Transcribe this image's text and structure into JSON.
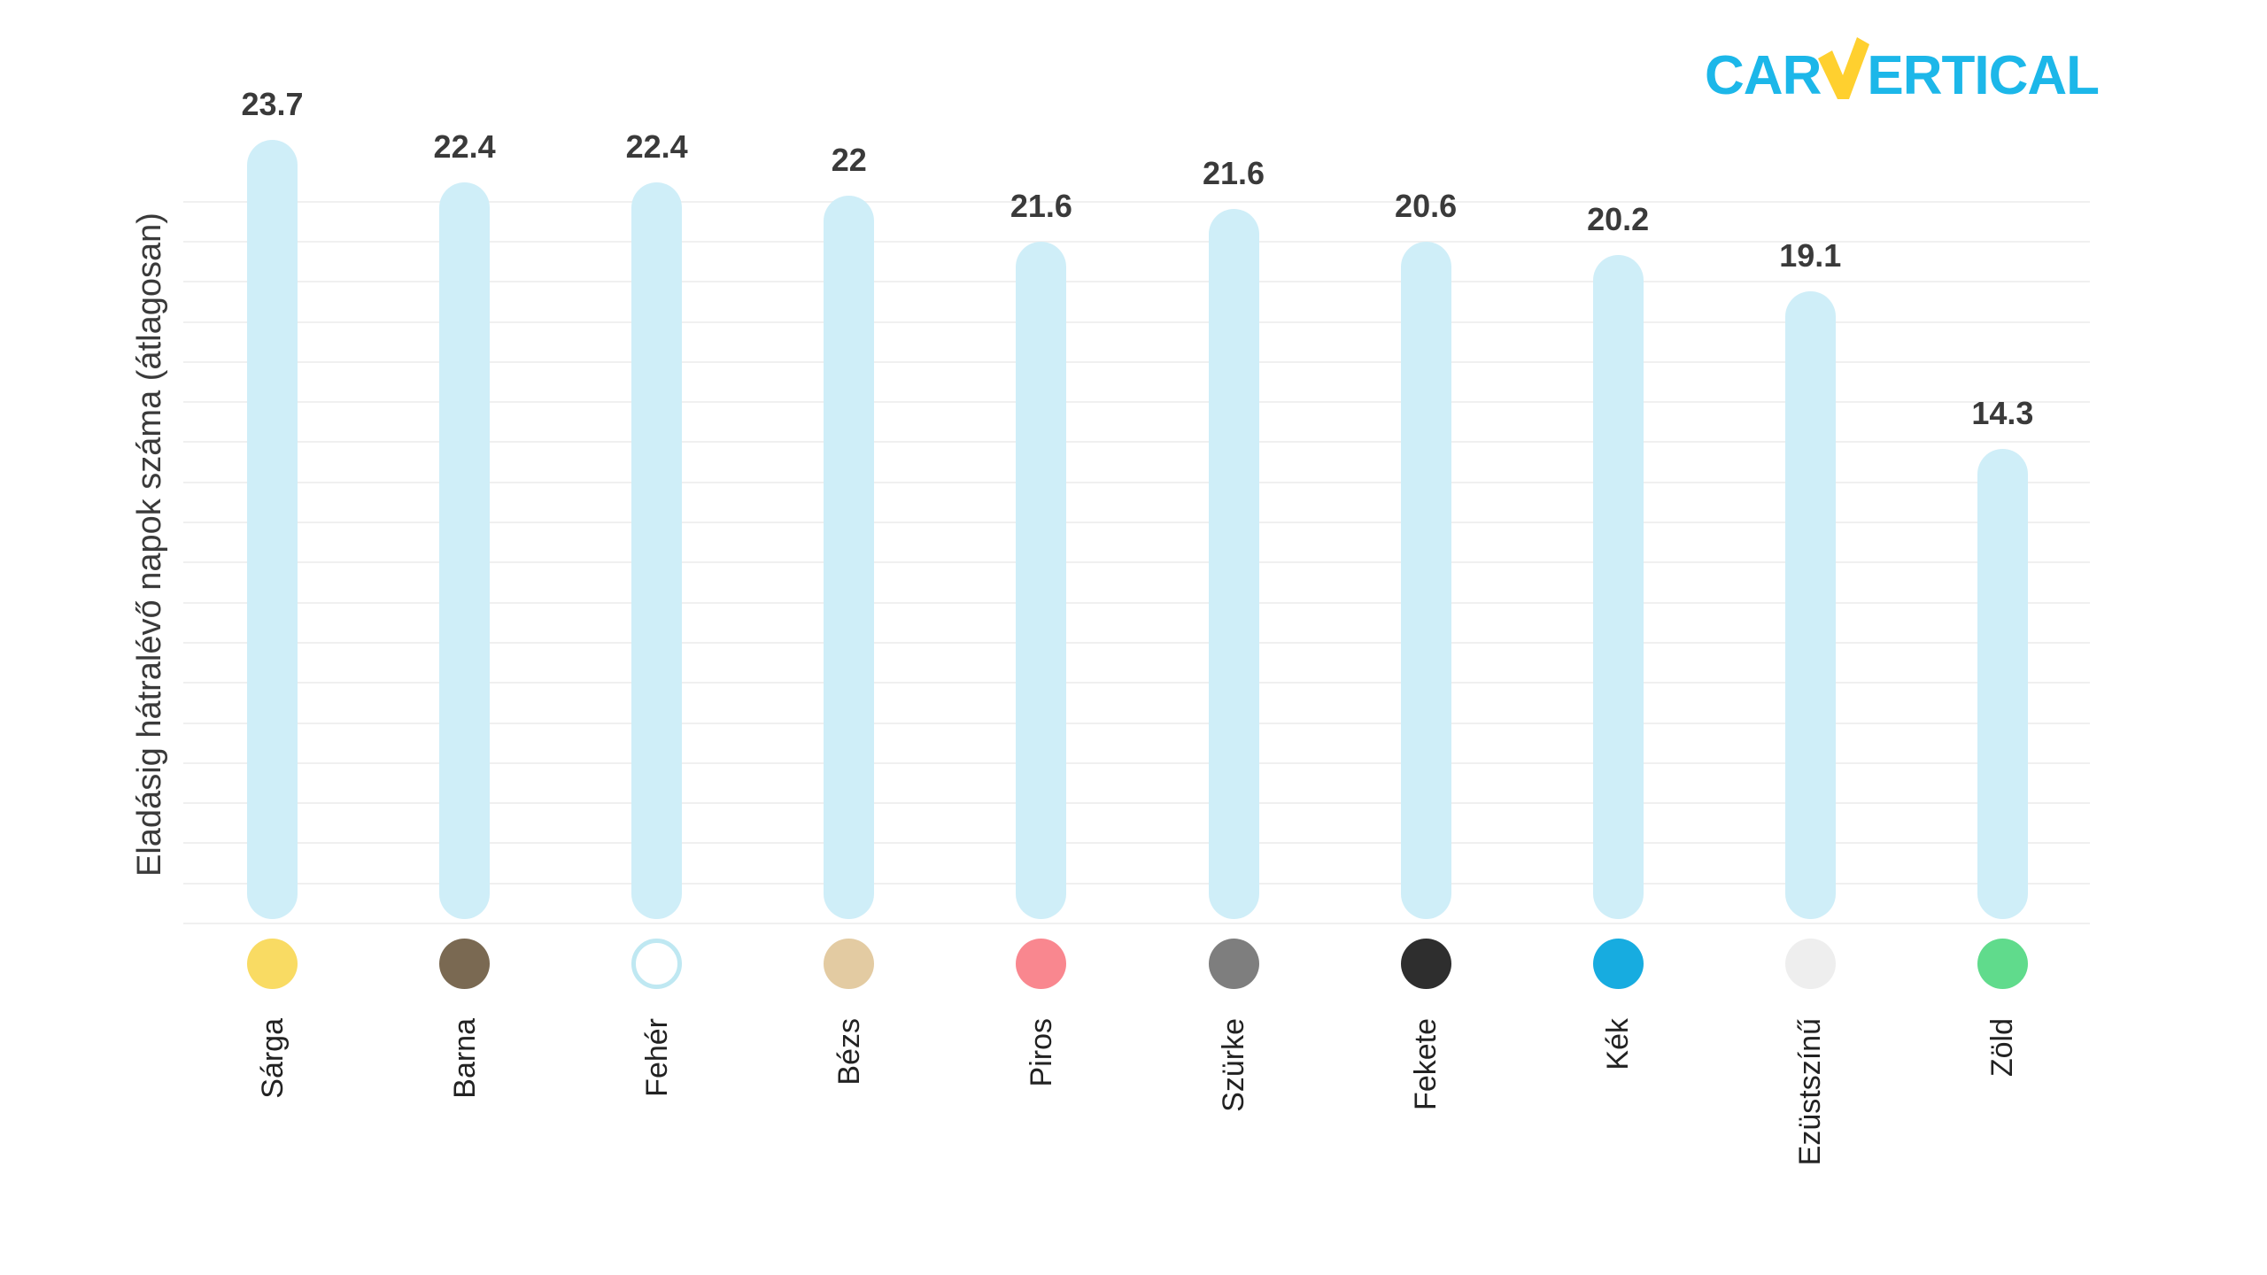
{
  "logo": {
    "part1": "CAR",
    "part2": "V",
    "part3": "ERTICAL",
    "cyan": "#1CB7E9",
    "yellow": "#FFD02F"
  },
  "chart_data": {
    "type": "bar",
    "title": "",
    "ylabel": "Eladásig hátralévő napok száma (átlagosan)",
    "xlabel": "",
    "categories": [
      "Sárga",
      "Barna",
      "Fehér",
      "Bézs",
      "Piros",
      "Szürke",
      "Fekete",
      "Kék",
      "Ezüstszínű",
      "Zöld"
    ],
    "values": [
      23.7,
      22.4,
      22.4,
      22,
      21.6,
      21.6,
      20.6,
      20.2,
      19.1,
      14.3
    ],
    "value_labels": [
      "23.7",
      "22.4",
      "22.4",
      "22",
      "21.6",
      "21.6",
      "20.6",
      "20.2",
      "19.1",
      "14.3"
    ],
    "visual_values": [
      23.7,
      22.4,
      22.4,
      22,
      20.6,
      21.6,
      20.6,
      20.2,
      19.1,
      14.3
    ],
    "ylim": [
      0,
      24
    ],
    "grid": "horizontal, faint, no tick labels",
    "legend": "none",
    "bar_color": "#CFEEF8",
    "value_label_color": "#3a3a3a",
    "category_label_color": "#222222",
    "gridline_color": "#f0f0f0",
    "dot_colors": [
      "#F9DB63",
      "#7A6952",
      "#FFFFFF",
      "#E3CBA2",
      "#F9878F",
      "#7E7E7E",
      "#2E2E2E",
      "#17ACE0",
      "#EEEEEE",
      "#60DB8C"
    ],
    "dot_borders": [
      "",
      "",
      "#BFE8F2",
      "",
      "",
      "",
      "",
      "",
      "",
      ""
    ]
  }
}
